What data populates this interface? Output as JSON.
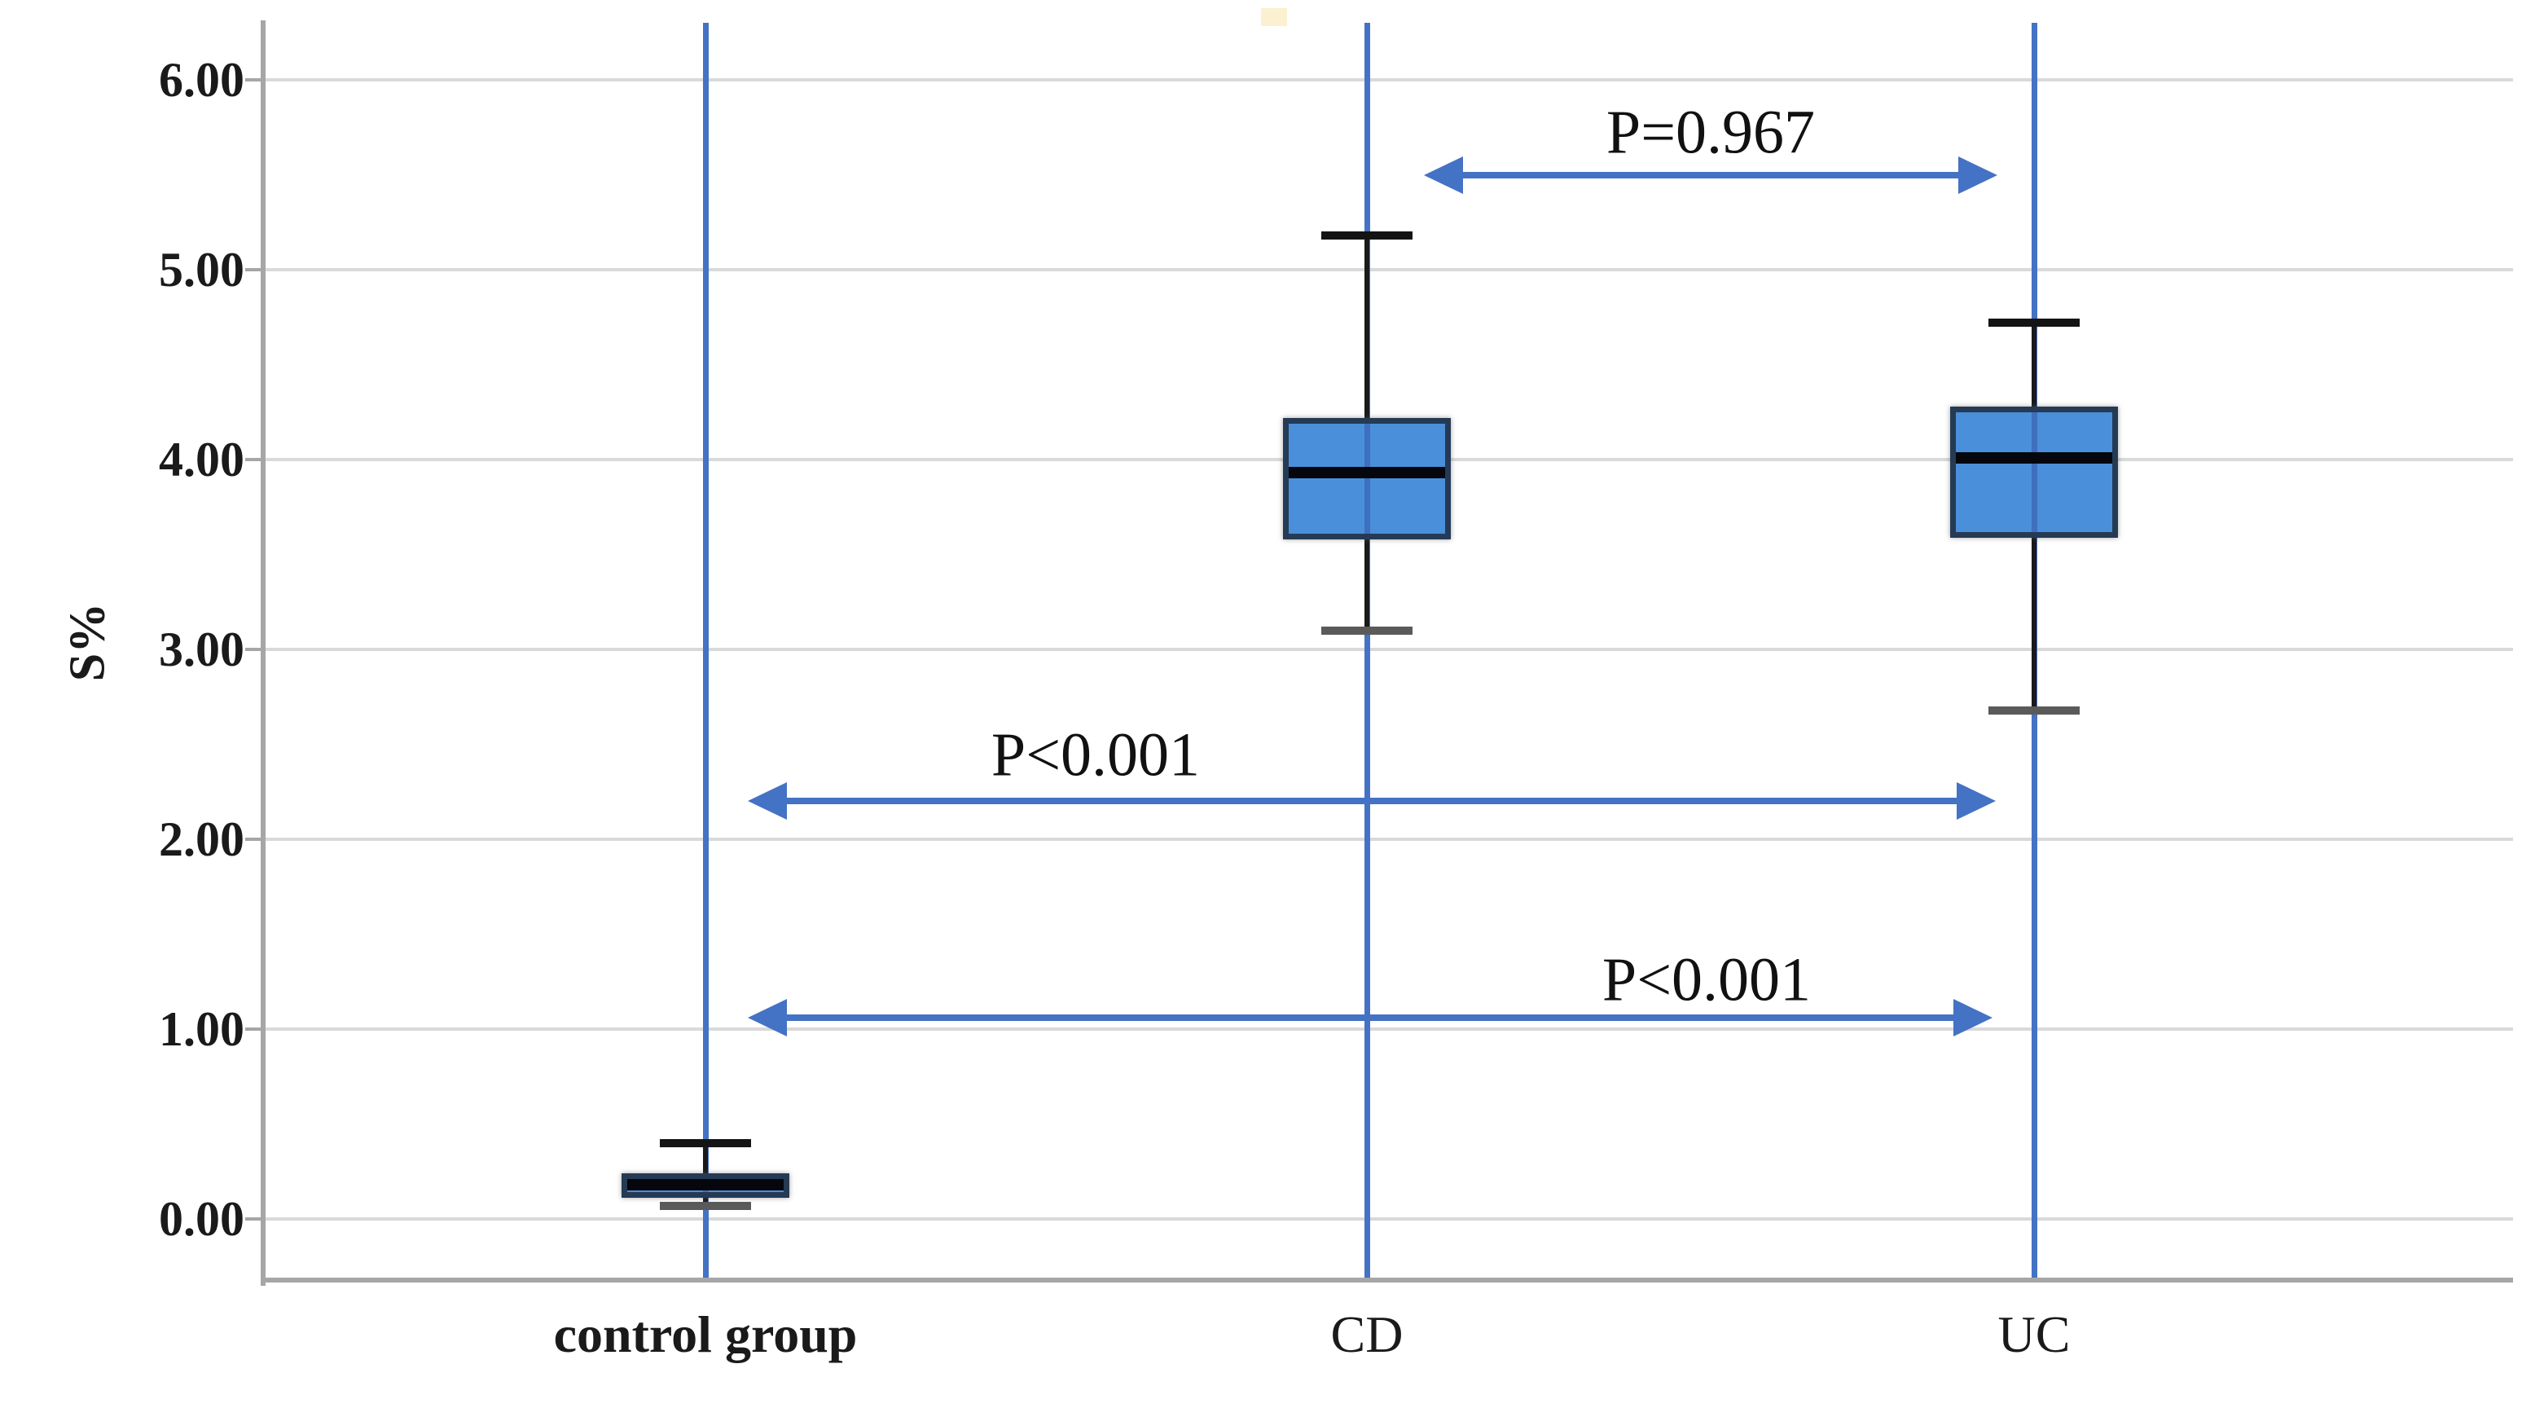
{
  "chart_data": {
    "type": "bar",
    "subtype": "boxplot",
    "title": "",
    "xlabel": "",
    "ylabel": "S%",
    "ylim": [
      0,
      6
    ],
    "grid": "horizontal",
    "legend_position": "none",
    "y_ticks": [
      {
        "label": "6.00",
        "value": 6
      },
      {
        "label": "5.00",
        "value": 5
      },
      {
        "label": "4.00",
        "value": 4
      },
      {
        "label": "3.00",
        "value": 3
      },
      {
        "label": "2.00",
        "value": 2
      },
      {
        "label": "1.00",
        "value": 1
      },
      {
        "label": "0.00",
        "value": 0
      }
    ],
    "categories": [
      "control group",
      "CD",
      "UC"
    ],
    "series": [
      {
        "name": "control group",
        "min": 0.07,
        "q1": 0.11,
        "median": 0.18,
        "q3": 0.24,
        "max": 0.4
      },
      {
        "name": "CD",
        "min": 3.1,
        "q1": 3.58,
        "median": 3.93,
        "q3": 4.22,
        "max": 5.18
      },
      {
        "name": "UC",
        "min": 2.68,
        "q1": 3.59,
        "median": 4.01,
        "q3": 4.28,
        "max": 4.72
      }
    ],
    "annotations": [
      {
        "label": "P=0.967",
        "from": "CD",
        "to": "UC",
        "y_value": 5.5
      },
      {
        "label": "P<0.001",
        "from": "control group",
        "to": "UC",
        "y_value": 2.2
      },
      {
        "label": "P<0.001",
        "from": "control group",
        "to": "UC",
        "y_value": 1.06
      }
    ],
    "colors": {
      "box_fill": "#4a8fd9",
      "box_border": "#253a54",
      "median": "#05070d",
      "whisker": "#141414",
      "category_line": "#4472c4",
      "arrow": "#4472c4",
      "gridline": "#d9d9d9",
      "axis": "#a6a6a6",
      "text": "#1a1a1a"
    }
  }
}
